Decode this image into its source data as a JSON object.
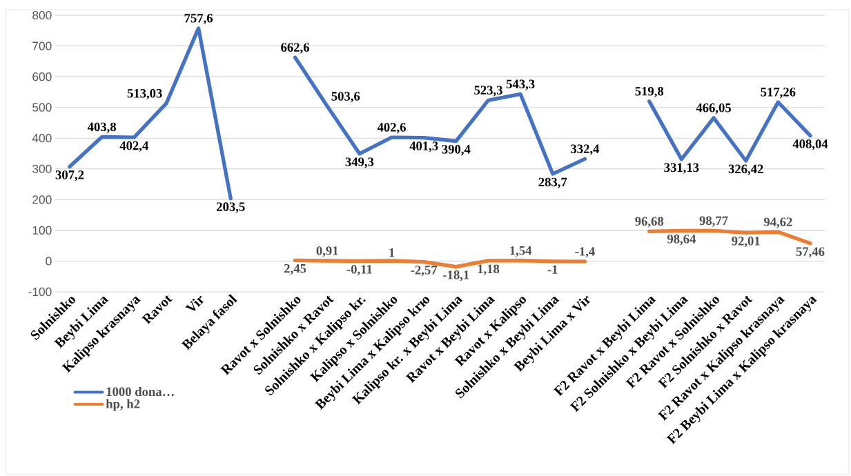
{
  "chart_data": {
    "type": "line",
    "categories": [
      "Solnishko",
      "Beybi Lima",
      "Kalipso krasnaya",
      "Ravot",
      "Vir",
      "Belaya fasol",
      null,
      "Ravot x Solnishko",
      "Solnishko x Ravot",
      "Solnishko x Kalipso kr.",
      "Kalipso x Solnishko",
      "Beybi Lima x Kalipso krю",
      "Kalipso kr. x Beybi Lima",
      "Ravot x Beybi Lima",
      "Ravot x Kalipso",
      "Solnishko x Beybi Lima",
      "Beybi Lima x Vir",
      null,
      "F2 Ravot x Beybi Lima",
      "F2 Solnishko x Beybi Lima",
      "F2 Ravot x Solnishko",
      "F2 Solnishko x Ravot",
      "F2 Ravot x Kalipso krasnaya",
      "F2 Beybi Lima x Kalipso krasnaya"
    ],
    "series": [
      {
        "name": "1000 dona…",
        "color": "#4472c4",
        "values": [
          307.2,
          403.8,
          402.4,
          513.03,
          757.6,
          203.5,
          null,
          662.6,
          503.6,
          349.3,
          402.6,
          401.3,
          390.4,
          523.3,
          543.3,
          283.7,
          332.4,
          null,
          519.8,
          331.13,
          466.05,
          326.42,
          517.26,
          408.04
        ],
        "value_labels": [
          "307,2",
          "403,8",
          "402,4",
          "513,03",
          "757,6",
          "203,5",
          null,
          "662,6",
          "503,6",
          "349,3",
          "402,6",
          "401,3",
          "390,4",
          "523,3",
          "543,3",
          "283,7",
          "332,4",
          null,
          "519,8",
          "331,13",
          "466,05",
          "326,42",
          "517,26",
          "408,04"
        ]
      },
      {
        "name": "hp,  h2",
        "color": "#ed7d31",
        "values": [
          null,
          null,
          null,
          null,
          null,
          null,
          null,
          2.45,
          0.91,
          -0.11,
          1,
          -2.57,
          -18.1,
          1.18,
          1.54,
          -1,
          -1.4,
          null,
          96.68,
          98.64,
          98.77,
          92.01,
          94.62,
          57.46
        ],
        "value_labels": [
          null,
          null,
          null,
          null,
          null,
          null,
          null,
          "2,45",
          "0,91",
          "-0,11",
          "1",
          "-2,57",
          "-18,1",
          "1,18",
          "1,54",
          "-1",
          "-1,4",
          null,
          "96,68",
          "98,64",
          "98,77",
          "92,01",
          "94,62",
          "57,46"
        ]
      }
    ],
    "ylim": [
      -100,
      800
    ],
    "yticks": [
      -100,
      0,
      100,
      200,
      300,
      400,
      500,
      600,
      700,
      800
    ],
    "grid": "y",
    "legend": "bottom left",
    "marker": "none",
    "line_style": "solid"
  }
}
